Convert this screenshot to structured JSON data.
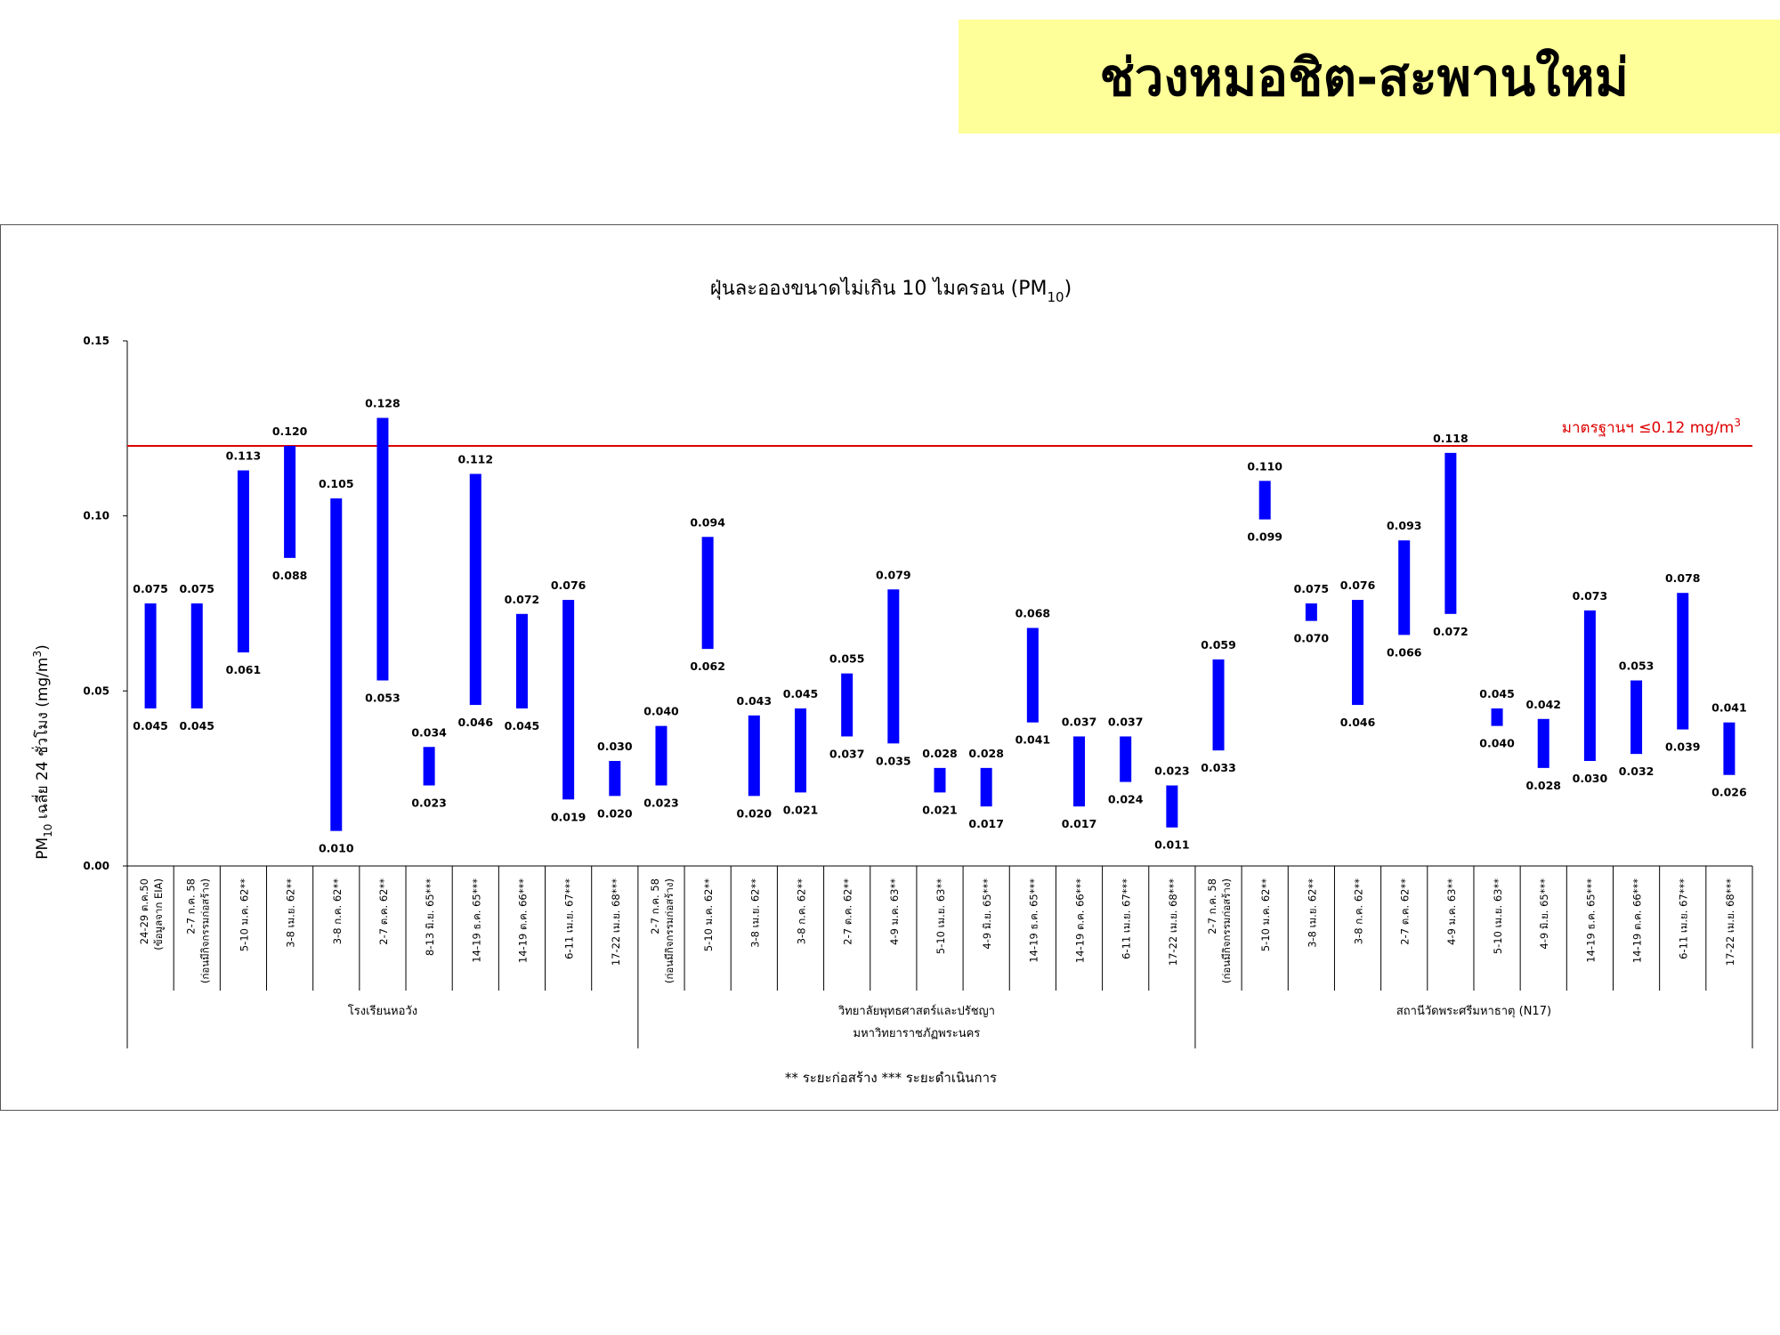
{
  "page": {
    "banner_title": "ช่วงหมอชิต-สะพานใหม่"
  },
  "colors": {
    "banner_bg": "#ffff99",
    "bar": "#0000ff",
    "standard_line": "#dd0000",
    "standard_text": "#dd0000"
  },
  "chart_data": {
    "type": "bar",
    "subtype": "floating range (min–max) bars",
    "title": "ฝุ่นละอองขนาดไม่เกิน 10 ไมครอน (PM10)",
    "title_parts": {
      "main": "ฝุ่นละอองขนาดไม่เกิน 10 ไมครอน (PM",
      "sub": "10",
      "close": ")"
    },
    "ylabel": "PM10 เฉลี่ย 24 ชั่วโมง (mg/m3)",
    "ylabel_parts": {
      "a": "PM",
      "sub": "10",
      "b": " เฉลี่ย 24 ชั่วโมง (mg/m",
      "sup": "3",
      "c": ")"
    },
    "ylim": [
      0,
      0.15
    ],
    "yticks": [
      "0.00",
      "0.05",
      "0.10",
      "0.15"
    ],
    "grid": false,
    "standard": {
      "value": 0.12,
      "label_main": "มาตรฐานฯ ≤0.12 mg/m",
      "label_sup": "3"
    },
    "footnote": "** ระยะก่อสร้าง    *** ระยะดำเนินการ",
    "groups": [
      {
        "name": "โรงเรียนหอวัง",
        "name2": "",
        "start": 0,
        "end": 10
      },
      {
        "name": "วิทยาลัยพุทธศาสตร์และปรัชญา",
        "name2": "มหาวิทยาราชภัฏพระนคร",
        "start": 11,
        "end": 22
      },
      {
        "name": "สถานีวัดพระศรีมหาธาตุ (N17)",
        "name2": "",
        "start": 23,
        "end": 34
      }
    ],
    "categories": [
      "24-29 ต.ค.50 (ข้อมูลจาก EIA)",
      "2-7 ก.ค. 58 (ก่อนมีกิจกรรมก่อสร้าง)",
      "5-10 ม.ค. 62**",
      "3-8 เม.ย. 62**",
      "3-8 ก.ค. 62**",
      "2-7 ต.ค. 62**",
      "8-13 มิ.ย. 65***",
      "14-19 ธ.ค. 65***",
      "14-19 ต.ค. 66***",
      "6-11 เม.ย. 67***",
      "17-22 เม.ย. 68***",
      "2-7 ก.ค. 58 (ก่อนมีกิจกรรมก่อสร้าง)",
      "5-10 ม.ค. 62**",
      "3-8 เม.ย. 62**",
      "3-8 ก.ค. 62**",
      "2-7 ต.ค. 62**",
      "4-9 ม.ค. 63**",
      "5-10 เม.ย. 63**",
      "4-9 มิ.ย. 65***",
      "14-19 ธ.ค. 65***",
      "14-19 ต.ค. 66***",
      "6-11 เม.ย. 67***",
      "17-22 เม.ย. 68***",
      "2-7 ก.ค. 58 (ก่อนมีกิจกรรมก่อสร้าง)",
      "5-10 ม.ค. 62**",
      "3-8 เม.ย. 62**",
      "3-8 ก.ค. 62**",
      "2-7 ต.ค. 62**",
      "4-9 ม.ค. 63**",
      "5-10 เม.ย. 63**",
      "4-9 มิ.ย. 65***",
      "14-19 ธ.ค. 65***",
      "14-19 ต.ค. 66***",
      "6-11 เม.ย. 67***",
      "17-22 เม.ย. 68***"
    ],
    "series": [
      {
        "name": "max",
        "values": [
          0.075,
          0.075,
          0.113,
          0.12,
          0.105,
          0.128,
          0.034,
          0.112,
          0.072,
          0.076,
          0.03,
          0.04,
          0.094,
          0.043,
          0.045,
          0.055,
          0.079,
          0.028,
          0.028,
          0.068,
          0.037,
          0.037,
          0.023,
          0.059,
          0.11,
          0.075,
          0.076,
          0.093,
          0.118,
          0.045,
          0.042,
          0.073,
          0.053,
          0.078,
          0.041
        ]
      },
      {
        "name": "min",
        "values": [
          0.045,
          0.045,
          0.061,
          0.088,
          0.01,
          0.053,
          0.023,
          0.046,
          0.045,
          0.019,
          0.02,
          0.023,
          0.062,
          0.02,
          0.021,
          0.037,
          0.035,
          0.021,
          0.017,
          0.041,
          0.017,
          0.024,
          0.011,
          0.033,
          0.099,
          0.07,
          0.046,
          0.066,
          0.072,
          0.04,
          0.028,
          0.03,
          0.032,
          0.039,
          0.026
        ]
      }
    ]
  }
}
